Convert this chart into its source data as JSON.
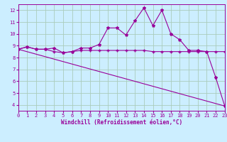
{
  "line1_x": [
    0,
    1,
    2,
    3,
    4,
    5,
    6,
    7,
    8,
    9,
    10,
    11,
    12,
    13,
    14,
    15,
    16,
    17,
    18,
    19,
    20,
    21,
    22,
    23
  ],
  "line1_y": [
    8.7,
    8.9,
    8.7,
    8.7,
    8.8,
    8.4,
    8.5,
    8.8,
    8.8,
    9.1,
    10.5,
    10.5,
    9.9,
    11.1,
    12.2,
    10.7,
    12.0,
    10.0,
    9.5,
    8.6,
    8.6,
    8.5,
    6.3,
    3.9
  ],
  "line2_x": [
    0,
    1,
    2,
    3,
    4,
    5,
    6,
    7,
    8,
    9,
    10,
    11,
    12,
    13,
    14,
    15,
    16,
    17,
    18,
    19,
    20,
    21,
    22,
    23
  ],
  "line2_y": [
    8.7,
    8.9,
    8.7,
    8.7,
    8.5,
    8.4,
    8.5,
    8.6,
    8.6,
    8.6,
    8.6,
    8.6,
    8.6,
    8.6,
    8.6,
    8.5,
    8.5,
    8.5,
    8.5,
    8.5,
    8.5,
    8.5,
    8.5,
    8.5
  ],
  "line3_x": [
    0,
    23
  ],
  "line3_y": [
    8.7,
    3.9
  ],
  "color": "#990099",
  "bg_color": "#cceeff",
  "plot_bg": "#cceeff",
  "grid_color": "#aaccbb",
  "xlabel": "Windchill (Refroidissement éolien,°C)",
  "xlim": [
    0,
    23
  ],
  "ylim": [
    3.5,
    12.5
  ],
  "yticks": [
    4,
    5,
    6,
    7,
    8,
    9,
    10,
    11,
    12
  ],
  "xticks": [
    0,
    1,
    2,
    3,
    4,
    5,
    6,
    7,
    8,
    9,
    10,
    11,
    12,
    13,
    14,
    15,
    16,
    17,
    18,
    19,
    20,
    21,
    22,
    23
  ]
}
